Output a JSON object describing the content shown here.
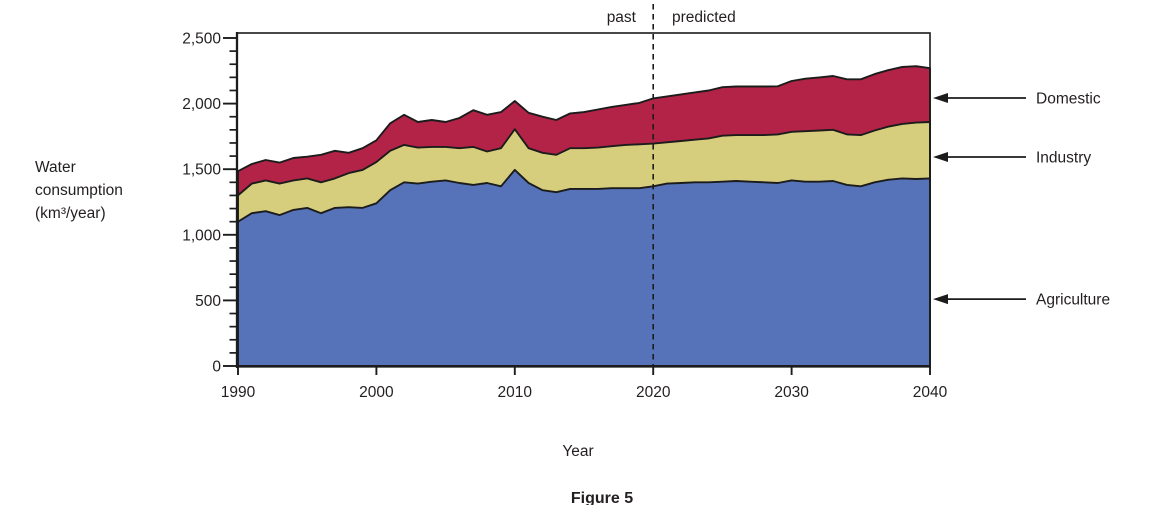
{
  "chart_data": {
    "type": "area",
    "stacked": true,
    "xlabel": "Year",
    "caption": "Figure 5",
    "ylabel_lines": [
      "Water",
      "consumption",
      "(km³/year)"
    ],
    "grid": false,
    "xlim": [
      1990,
      2040
    ],
    "ylim": [
      0,
      2500
    ],
    "x_ticks": [
      1990,
      2000,
      2010,
      2020,
      2030,
      2040
    ],
    "y_ticks": [
      0,
      500,
      1000,
      1500,
      2000,
      2500
    ],
    "y_tick_labels": [
      "0",
      "500",
      "1,000",
      "1,500",
      "2,000",
      "2,500"
    ],
    "y_minor_step": 100,
    "outline_color": "#1c1c1c",
    "divider": {
      "x": 2020,
      "style": "dashed",
      "left_label": "past",
      "right_label": "predicted"
    },
    "x": [
      1990,
      1991,
      1992,
      1993,
      1994,
      1995,
      1996,
      1997,
      1998,
      1999,
      2000,
      2001,
      2002,
      2003,
      2004,
      2005,
      2006,
      2007,
      2008,
      2009,
      2010,
      2011,
      2012,
      2013,
      2014,
      2015,
      2016,
      2017,
      2018,
      2019,
      2020,
      2021,
      2022,
      2023,
      2024,
      2025,
      2026,
      2027,
      2028,
      2029,
      2030,
      2031,
      2032,
      2033,
      2034,
      2035,
      2036,
      2037,
      2038,
      2039,
      2040
    ],
    "series": [
      {
        "name": "Agriculture",
        "color": "#5673b9",
        "values": [
          1100,
          1165,
          1180,
          1150,
          1190,
          1205,
          1165,
          1205,
          1210,
          1205,
          1240,
          1340,
          1400,
          1390,
          1405,
          1415,
          1395,
          1380,
          1395,
          1370,
          1495,
          1395,
          1340,
          1325,
          1350,
          1350,
          1350,
          1355,
          1355,
          1355,
          1370,
          1390,
          1395,
          1400,
          1400,
          1405,
          1410,
          1405,
          1400,
          1395,
          1415,
          1405,
          1405,
          1410,
          1380,
          1370,
          1400,
          1420,
          1430,
          1425,
          1430
        ]
      },
      {
        "name": "Industry",
        "color": "#d6ce7d",
        "values": [
          200,
          225,
          235,
          240,
          225,
          225,
          235,
          225,
          260,
          290,
          315,
          300,
          285,
          275,
          265,
          255,
          265,
          290,
          240,
          290,
          310,
          265,
          285,
          285,
          310,
          310,
          315,
          320,
          330,
          335,
          325,
          315,
          320,
          325,
          335,
          350,
          350,
          355,
          360,
          370,
          370,
          385,
          390,
          390,
          385,
          390,
          395,
          405,
          415,
          430,
          430
        ]
      },
      {
        "name": "Domestic",
        "color": "#b32347",
        "values": [
          185,
          150,
          155,
          160,
          170,
          165,
          210,
          210,
          155,
          165,
          165,
          210,
          230,
          195,
          205,
          190,
          230,
          280,
          280,
          275,
          215,
          270,
          275,
          265,
          265,
          275,
          290,
          300,
          305,
          315,
          345,
          350,
          355,
          360,
          365,
          370,
          370,
          370,
          370,
          367,
          387,
          400,
          405,
          410,
          420,
          425,
          430,
          430,
          435,
          430,
          410
        ]
      }
    ],
    "annotations": [
      {
        "label": "Domestic",
        "arrow_value": 2043
      },
      {
        "label": "Industry",
        "arrow_value": 1593
      },
      {
        "label": "Agriculture",
        "arrow_value": 510
      }
    ]
  }
}
